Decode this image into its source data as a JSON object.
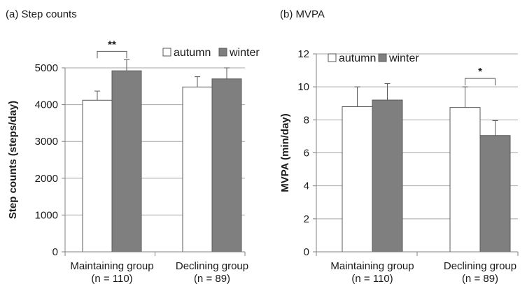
{
  "chart_data": [
    {
      "type": "bar",
      "title": "(a) Step counts",
      "ylabel": "Step counts (steps/day)",
      "xlabel": "",
      "ylim": [
        0,
        5000
      ],
      "yticks": [
        "0",
        "1000",
        "2000",
        "3000",
        "4000",
        "5000"
      ],
      "grid": true,
      "legend_position": "top-right",
      "categories": [
        {
          "label": "Maintaining group",
          "sub": "(n = 110)"
        },
        {
          "label": "Declining group",
          "sub": "(n = 89)"
        }
      ],
      "series": [
        {
          "name": "autumn",
          "color": "#ffffff",
          "values": [
            4120,
            4480
          ],
          "errors": [
            250,
            280
          ]
        },
        {
          "name": "winter",
          "color": "#7f7f7f",
          "values": [
            4920,
            4700
          ],
          "errors": [
            300,
            300
          ]
        }
      ],
      "annotations": [
        {
          "text": "**",
          "category": 0
        }
      ]
    },
    {
      "type": "bar",
      "title": "(b) MVPA",
      "ylabel": "MVPA (min/day)",
      "xlabel": "",
      "ylim": [
        0,
        12
      ],
      "yticks": [
        "0",
        "2",
        "4",
        "6",
        "8",
        "10",
        "12"
      ],
      "grid": true,
      "legend_position": "top",
      "categories": [
        {
          "label": "Maintaining group",
          "sub": "(n = 110)"
        },
        {
          "label": "Declining group",
          "sub": "(n = 89)"
        }
      ],
      "series": [
        {
          "name": "autumn",
          "color": "#ffffff",
          "values": [
            8.8,
            8.75
          ],
          "errors": [
            1.2,
            1.25
          ]
        },
        {
          "name": "winter",
          "color": "#7f7f7f",
          "values": [
            9.2,
            7.05
          ],
          "errors": [
            1.0,
            0.9
          ]
        }
      ],
      "annotations": [
        {
          "text": "*",
          "category": 1
        }
      ]
    }
  ]
}
